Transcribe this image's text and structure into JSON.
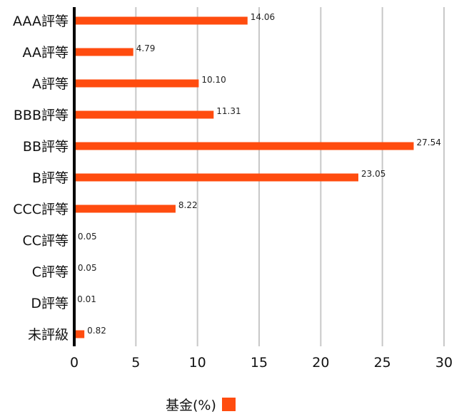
{
  "chart_data": {
    "type": "bar",
    "orientation": "horizontal",
    "categories": [
      "AAA評等",
      "AA評等",
      "A評等",
      "BBB評等",
      "BB評等",
      "B評等",
      "CCC評等",
      "CC評等",
      "C評等",
      "D評等",
      "未評級"
    ],
    "series": [
      {
        "name": "基金(%)",
        "color": "#ff4c0f",
        "values": [
          14.06,
          4.79,
          10.1,
          11.31,
          27.54,
          23.05,
          8.22,
          0.05,
          0.05,
          0.01,
          0.82
        ],
        "value_labels": [
          "14.06",
          "4.79",
          "10.10",
          "11.31",
          "27.54",
          "23.05",
          "8.22",
          "0.05",
          "0.05",
          "0.01",
          "0.82"
        ]
      }
    ],
    "xlim": [
      0,
      30
    ],
    "xticks": [
      0,
      5,
      10,
      15,
      20,
      25,
      30
    ],
    "grid": "vertical",
    "legend_position": "bottom-center"
  },
  "legend": {
    "label": "基金(%)",
    "color": "#ff4c0f"
  }
}
